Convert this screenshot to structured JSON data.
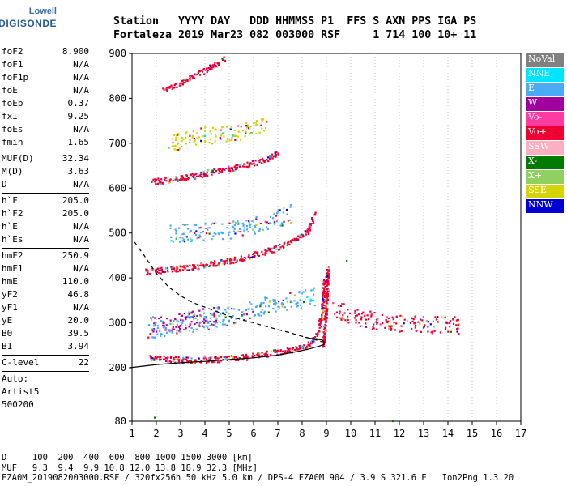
{
  "logo": {
    "line1": "Lowell",
    "line2": "DIGISONDE"
  },
  "header": {
    "line1": "Station   YYYY DAY   DDD HHMMSS P1  FFS S AXN PPS IGA PS",
    "line2": "Fortaleza 2019 Mar23 082 003000 RSF     1 714 100 10+ 11"
  },
  "params": {
    "group1": [
      {
        "k": "foF2",
        "v": "8.900"
      },
      {
        "k": "foF1",
        "v": "N/A"
      },
      {
        "k": "foF1p",
        "v": "N/A"
      },
      {
        "k": "foE",
        "v": "N/A"
      },
      {
        "k": "foEp",
        "v": "0.37"
      },
      {
        "k": "fxI",
        "v": "9.25"
      },
      {
        "k": "foEs",
        "v": "N/A"
      },
      {
        "k": "fmin",
        "v": "1.65"
      }
    ],
    "group2": [
      {
        "k": "MUF(D)",
        "v": "32.34"
      },
      {
        "k": "M(D)",
        "v": "3.63"
      },
      {
        "k": "D",
        "v": "N/A"
      }
    ],
    "group3": [
      {
        "k": "h`F",
        "v": "205.0"
      },
      {
        "k": "h`F2",
        "v": "205.0"
      },
      {
        "k": "h`E",
        "v": "N/A"
      },
      {
        "k": "h`Es",
        "v": "N/A"
      }
    ],
    "group4": [
      {
        "k": "hmF2",
        "v": "250.9"
      },
      {
        "k": "hmF1",
        "v": "N/A"
      },
      {
        "k": "hmE",
        "v": "110.0"
      },
      {
        "k": "yF2",
        "v": "46.8"
      },
      {
        "k": "yF1",
        "v": "N/A"
      },
      {
        "k": "yE",
        "v": "20.0"
      },
      {
        "k": "B0",
        "v": "39.5"
      },
      {
        "k": "B1",
        "v": "3.94"
      }
    ],
    "group5": [
      {
        "k": "C-level",
        "v": "22"
      }
    ],
    "auto": [
      "Auto:",
      "Artist5",
      "500200"
    ]
  },
  "legend": [
    {
      "label": "NoVal",
      "color": "#808080"
    },
    {
      "label": "NNE",
      "color": "#00e5ff"
    },
    {
      "label": "E",
      "color": "#49aaf5"
    },
    {
      "label": "W",
      "color": "#a000a0"
    },
    {
      "label": "Vo-",
      "color": "#ff3aa0"
    },
    {
      "label": "Vo+",
      "color": "#ee0033"
    },
    {
      "label": "SSW",
      "color": "#ffb0c0"
    },
    {
      "label": "X-",
      "color": "#007a00"
    },
    {
      "label": "X+",
      "color": "#8fd060"
    },
    {
      "label": "SSE",
      "color": "#d4d400"
    },
    {
      "label": "NNW",
      "color": "#0000d0"
    }
  ],
  "footer": {
    "line1": "D     100  200  400  600  800 1000 1500 3000 [km]",
    "line2": "MUF   9.3  9.4  9.9 10.8 12.0 13.8 18.9 32.3 [MHz]",
    "line3": "FZA0M_2019082003000.RSF / 320fx256h 50 kHz 5.0 km / DPS-4 FZA0M 904 / 3.9 S 321.6 E   Ion2Png 1.3.20"
  },
  "chart_data": {
    "type": "scatter",
    "x_ticks": [
      1,
      2,
      3,
      4,
      5,
      6,
      7,
      8,
      9,
      10,
      11,
      12,
      13,
      14,
      15,
      16,
      17
    ],
    "y_ticks": [
      80,
      200,
      300,
      400,
      500,
      600,
      700,
      800,
      900
    ],
    "xlim": [
      1,
      17
    ],
    "y_axis": "Virtual height (km); non-linear scale, 80 km at bottom",
    "grid": "dotted vertical at each MHz",
    "series": [
      {
        "name": "Vo+",
        "role": "O-trace 1st hop",
        "points": [
          [
            1.7,
            225
          ],
          [
            2.5,
            220
          ],
          [
            3.5,
            218
          ],
          [
            4.5,
            220
          ],
          [
            5.5,
            224
          ],
          [
            6.5,
            232
          ],
          [
            7.5,
            240
          ],
          [
            8.2,
            252
          ],
          [
            8.6,
            275
          ],
          [
            8.8,
            320
          ],
          [
            8.9,
            400
          ]
        ]
      },
      {
        "name": "W",
        "role": "oblique spread F",
        "points": [
          [
            1.7,
            300
          ],
          [
            2.5,
            305
          ],
          [
            3.5,
            310
          ],
          [
            4.5,
            318
          ]
        ]
      },
      {
        "name": "E",
        "role": "spread F ~300 km",
        "points": [
          [
            1.6,
            285
          ],
          [
            2.5,
            290
          ],
          [
            3.5,
            300
          ],
          [
            4.5,
            310
          ],
          [
            5.5,
            325
          ],
          [
            6.5,
            340
          ],
          [
            7.5,
            350
          ],
          [
            8.5,
            360
          ]
        ]
      },
      {
        "name": "Vo+",
        "role": "O-trace 2nd hop",
        "points": [
          [
            1.5,
            415
          ],
          [
            2.5,
            420
          ],
          [
            3.5,
            425
          ],
          [
            4.5,
            435
          ],
          [
            5.5,
            445
          ],
          [
            6.5,
            460
          ],
          [
            7.5,
            480
          ],
          [
            8.2,
            505
          ],
          [
            8.5,
            545
          ]
        ]
      },
      {
        "name": "E",
        "role": "2nd hop spread ~500 km",
        "points": [
          [
            2.5,
            500
          ],
          [
            3.5,
            502
          ],
          [
            4.5,
            505
          ],
          [
            5.5,
            512
          ],
          [
            6.5,
            525
          ],
          [
            7.5,
            545
          ]
        ]
      },
      {
        "name": "Vo+",
        "role": "O-trace 3rd hop",
        "points": [
          [
            1.8,
            615
          ],
          [
            2.5,
            620
          ],
          [
            3.5,
            628
          ],
          [
            4.5,
            640
          ],
          [
            5.5,
            650
          ],
          [
            6.5,
            665
          ],
          [
            7.0,
            680
          ]
        ]
      },
      {
        "name": "SSE",
        "role": "3rd hop spread",
        "points": [
          [
            2.5,
            700
          ],
          [
            3.5,
            715
          ],
          [
            4.5,
            720
          ],
          [
            5.5,
            730
          ],
          [
            6.5,
            740
          ]
        ]
      },
      {
        "name": "Vo+",
        "role": "O-trace 4th hop",
        "points": [
          [
            2.2,
            820
          ],
          [
            2.8,
            830
          ],
          [
            3.5,
            850
          ],
          [
            4.2,
            870
          ],
          [
            4.8,
            890
          ]
        ]
      },
      {
        "name": "Vo+",
        "role": "spread near foF2",
        "points": [
          [
            9.2,
            330
          ],
          [
            10.0,
            320
          ],
          [
            10.5,
            310
          ],
          [
            11.0,
            305
          ],
          [
            11.5,
            300
          ],
          [
            12.5,
            298
          ],
          [
            13.5,
            297
          ],
          [
            14.5,
            296
          ]
        ]
      }
    ],
    "curves": [
      {
        "name": "electron density profile",
        "style": "solid",
        "points": [
          [
            0.9,
            200
          ],
          [
            2.0,
            207
          ],
          [
            3.0,
            211
          ],
          [
            4.0,
            214
          ],
          [
            5.0,
            218
          ],
          [
            6.0,
            222
          ],
          [
            7.0,
            228
          ],
          [
            7.8,
            236
          ],
          [
            8.3,
            242
          ],
          [
            8.7,
            248
          ],
          [
            8.9,
            252
          ],
          [
            8.9,
            258
          ],
          [
            8.8,
            262
          ],
          [
            8.5,
            264
          ],
          [
            8.1,
            268
          ]
        ]
      },
      {
        "name": "topside profile",
        "style": "dashed",
        "points": [
          [
            1.1,
            480
          ],
          [
            1.5,
            450
          ],
          [
            2.0,
            410
          ],
          [
            2.5,
            380
          ],
          [
            3.0,
            360
          ],
          [
            3.5,
            345
          ],
          [
            4.0,
            335
          ],
          [
            5.0,
            315
          ],
          [
            6.0,
            300
          ],
          [
            7.0,
            285
          ],
          [
            7.5,
            278
          ],
          [
            8.0,
            270
          ],
          [
            8.5,
            263
          ],
          [
            8.8,
            258
          ]
        ]
      }
    ]
  }
}
